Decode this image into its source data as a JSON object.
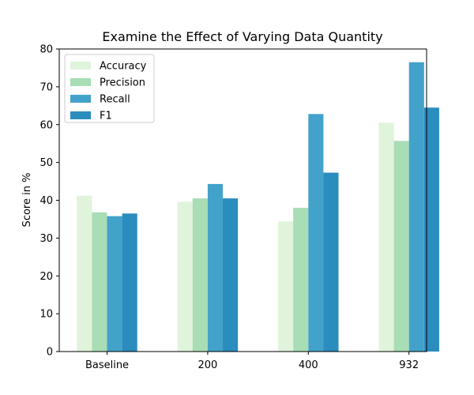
{
  "chart_data": {
    "type": "bar",
    "title": "Examine the Effect of Varying Data Quantity",
    "xlabel": "",
    "ylabel": "Score in %",
    "categories": [
      "Baseline",
      "200",
      "400",
      "932"
    ],
    "series": [
      {
        "name": "Accuracy",
        "color": "#e0f3db",
        "values": [
          41.2,
          39.6,
          34.4,
          60.5
        ]
      },
      {
        "name": "Precision",
        "color": "#a8ddb5",
        "values": [
          36.8,
          40.5,
          38.0,
          55.7
        ]
      },
      {
        "name": "Recall",
        "color": "#43a2ca",
        "values": [
          35.8,
          44.3,
          62.8,
          76.5
        ]
      },
      {
        "name": "F1",
        "color": "#2b8cbe",
        "values": [
          36.5,
          40.5,
          47.3,
          64.5
        ]
      }
    ],
    "ylim": [
      0,
      80
    ],
    "yticks": [
      0,
      10,
      20,
      30,
      40,
      50,
      60,
      70,
      80
    ],
    "grid": false,
    "legend": "top-left"
  }
}
